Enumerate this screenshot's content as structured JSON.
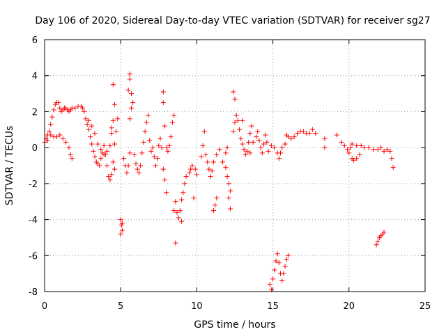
{
  "chart_data": {
    "type": "scatter",
    "title": "Day 106 of 2020, Sidereal Day-to-day VTEC variation (SDTVAR) for receiver sg27",
    "xlabel": "GPS time / hours",
    "ylabel": "SDTVAR / TECUs",
    "xlim": [
      0,
      25
    ],
    "ylim": [
      -8,
      6
    ],
    "xticks": [
      0,
      5,
      10,
      15,
      20,
      25
    ],
    "yticks": [
      -8,
      -6,
      -4,
      -2,
      0,
      2,
      4,
      6
    ],
    "grid": true,
    "marker": "plus",
    "color": "#ff0000",
    "series": [
      {
        "name": "SDTVAR",
        "points": [
          [
            0.0,
            0.3
          ],
          [
            0.1,
            0.5
          ],
          [
            0.2,
            0.7
          ],
          [
            0.3,
            0.9
          ],
          [
            0.4,
            1.3
          ],
          [
            0.5,
            1.7
          ],
          [
            0.6,
            2.1
          ],
          [
            0.7,
            2.4
          ],
          [
            0.8,
            2.5
          ],
          [
            0.9,
            2.5
          ],
          [
            1.0,
            2.2
          ],
          [
            1.1,
            2.0
          ],
          [
            1.2,
            2.1
          ],
          [
            1.3,
            2.2
          ],
          [
            1.4,
            2.2
          ],
          [
            1.5,
            2.1
          ],
          [
            1.6,
            2.0
          ],
          [
            1.7,
            2.1
          ],
          [
            1.8,
            2.2
          ],
          [
            2.0,
            2.2
          ],
          [
            2.2,
            2.3
          ],
          [
            2.4,
            2.3
          ],
          [
            2.5,
            2.2
          ],
          [
            2.6,
            2.0
          ],
          [
            2.7,
            1.6
          ],
          [
            2.8,
            1.3
          ],
          [
            2.9,
            1.0
          ],
          [
            3.0,
            0.6
          ],
          [
            3.1,
            0.2
          ],
          [
            3.2,
            -0.2
          ],
          [
            3.3,
            -0.5
          ],
          [
            3.4,
            -0.8
          ],
          [
            3.5,
            -0.9
          ],
          [
            3.6,
            -1.0
          ],
          [
            3.7,
            -0.6
          ],
          [
            3.8,
            -0.3
          ],
          [
            3.9,
            0.1
          ],
          [
            4.0,
            -0.4
          ],
          [
            4.1,
            -1.0
          ],
          [
            4.2,
            -1.6
          ],
          [
            4.3,
            -1.8
          ],
          [
            4.4,
            -1.5
          ],
          [
            4.5,
            -0.8
          ],
          [
            4.6,
            0.2
          ],
          [
            4.7,
            0.9
          ],
          [
            4.8,
            1.6
          ],
          [
            0.2,
            0.4
          ],
          [
            0.4,
            0.7
          ],
          [
            0.6,
            0.6
          ],
          [
            0.8,
            0.6
          ],
          [
            1.0,
            0.7
          ],
          [
            1.2,
            0.5
          ],
          [
            1.4,
            0.3
          ],
          [
            1.6,
            0.0
          ],
          [
            1.7,
            -0.4
          ],
          [
            1.8,
            -0.6
          ],
          [
            2.9,
            1.5
          ],
          [
            3.1,
            1.2
          ],
          [
            3.3,
            0.8
          ],
          [
            3.5,
            0.2
          ],
          [
            3.7,
            -0.1
          ],
          [
            3.9,
            -0.4
          ],
          [
            4.1,
            -0.2
          ],
          [
            4.3,
            0.1
          ],
          [
            4.4,
            1.1
          ],
          [
            4.5,
            1.5
          ],
          [
            4.6,
            2.4
          ],
          [
            4.5,
            3.5
          ],
          [
            4.4,
            0.8
          ],
          [
            4.6,
            -1.2
          ],
          [
            5.0,
            -4.0
          ],
          [
            5.05,
            -4.3
          ],
          [
            5.1,
            -4.6
          ],
          [
            5.0,
            -4.8
          ],
          [
            5.1,
            -4.2
          ],
          [
            5.2,
            -0.6
          ],
          [
            5.3,
            -1.0
          ],
          [
            5.4,
            -1.4
          ],
          [
            5.5,
            -1.0
          ],
          [
            5.6,
            -0.3
          ],
          [
            5.6,
            1.6
          ],
          [
            5.7,
            2.2
          ],
          [
            5.5,
            3.2
          ],
          [
            5.6,
            3.8
          ],
          [
            5.6,
            4.1
          ],
          [
            5.7,
            3.0
          ],
          [
            5.8,
            2.5
          ],
          [
            5.9,
            -0.4
          ],
          [
            6.0,
            -0.9
          ],
          [
            6.1,
            -1.2
          ],
          [
            6.2,
            -1.4
          ],
          [
            6.3,
            -1.0
          ],
          [
            6.4,
            -0.3
          ],
          [
            6.5,
            0.3
          ],
          [
            6.6,
            0.9
          ],
          [
            6.7,
            1.4
          ],
          [
            6.8,
            1.8
          ],
          [
            6.9,
            0.4
          ],
          [
            7.0,
            -0.2
          ],
          [
            7.1,
            0.0
          ],
          [
            7.2,
            -0.5
          ],
          [
            7.3,
            -1.0
          ],
          [
            7.4,
            -0.6
          ],
          [
            7.5,
            0.1
          ],
          [
            7.6,
            0.5
          ],
          [
            7.7,
            0.0
          ],
          [
            7.8,
            -1.2
          ],
          [
            7.9,
            -1.8
          ],
          [
            8.0,
            -2.5
          ],
          [
            7.8,
            2.5
          ],
          [
            7.8,
            3.1
          ],
          [
            7.9,
            1.2
          ],
          [
            8.0,
            0.0
          ],
          [
            8.1,
            -0.2
          ],
          [
            8.2,
            0.1
          ],
          [
            8.3,
            0.6
          ],
          [
            8.4,
            1.4
          ],
          [
            8.5,
            1.8
          ],
          [
            8.5,
            -3.5
          ],
          [
            8.6,
            -3.0
          ],
          [
            8.7,
            -3.6
          ],
          [
            8.8,
            -3.9
          ],
          [
            8.9,
            -3.5
          ],
          [
            9.0,
            -2.9
          ],
          [
            9.1,
            -2.5
          ],
          [
            9.0,
            -4.1
          ],
          [
            8.6,
            -5.3
          ],
          [
            9.2,
            -2.0
          ],
          [
            9.3,
            -1.6
          ],
          [
            9.5,
            -1.4
          ],
          [
            9.6,
            -1.2
          ],
          [
            9.7,
            -1.0
          ],
          [
            9.9,
            -1.2
          ],
          [
            10.0,
            -1.5
          ],
          [
            9.8,
            -2.8
          ],
          [
            10.3,
            -0.5
          ],
          [
            10.4,
            0.1
          ],
          [
            10.5,
            0.9
          ],
          [
            10.6,
            -0.4
          ],
          [
            10.7,
            -0.8
          ],
          [
            10.8,
            -1.2
          ],
          [
            10.9,
            -1.6
          ],
          [
            11.0,
            -1.3
          ],
          [
            11.1,
            -0.8
          ],
          [
            11.3,
            -0.4
          ],
          [
            11.5,
            -0.1
          ],
          [
            11.7,
            -0.8
          ],
          [
            11.9,
            -1.1
          ],
          [
            12.0,
            -1.6
          ],
          [
            12.1,
            -2.0
          ],
          [
            12.2,
            -2.4
          ],
          [
            11.9,
            -0.3
          ],
          [
            12.0,
            0.0
          ],
          [
            12.1,
            -2.8
          ],
          [
            12.2,
            -3.4
          ],
          [
            11.3,
            -2.8
          ],
          [
            11.2,
            -3.2
          ],
          [
            11.1,
            -3.5
          ],
          [
            12.4,
            0.9
          ],
          [
            12.5,
            1.4
          ],
          [
            12.6,
            1.8
          ],
          [
            12.7,
            1.5
          ],
          [
            12.8,
            1.0
          ],
          [
            12.9,
            0.5
          ],
          [
            13.0,
            0.2
          ],
          [
            13.1,
            -0.1
          ],
          [
            13.2,
            -0.4
          ],
          [
            13.3,
            -0.2
          ],
          [
            13.4,
            0.3
          ],
          [
            13.5,
            0.8
          ],
          [
            13.6,
            1.2
          ],
          [
            12.5,
            2.7
          ],
          [
            12.4,
            3.1
          ],
          [
            13.0,
            1.5
          ],
          [
            13.5,
            -0.3
          ],
          [
            13.7,
            0.3
          ],
          [
            13.9,
            0.6
          ],
          [
            14.0,
            0.9
          ],
          [
            14.1,
            0.4
          ],
          [
            14.2,
            0.0
          ],
          [
            14.3,
            -0.3
          ],
          [
            14.4,
            0.2
          ],
          [
            14.5,
            0.7
          ],
          [
            14.6,
            0.3
          ],
          [
            14.7,
            -0.2
          ],
          [
            14.9,
            0.1
          ],
          [
            15.1,
            0.0
          ],
          [
            15.3,
            -0.3
          ],
          [
            15.4,
            -0.6
          ],
          [
            15.5,
            -0.3
          ],
          [
            15.6,
            0.0
          ],
          [
            15.8,
            0.2
          ],
          [
            14.8,
            -7.6
          ],
          [
            14.9,
            -7.9
          ],
          [
            15.0,
            -7.3
          ],
          [
            15.1,
            -6.8
          ],
          [
            15.2,
            -6.3
          ],
          [
            15.3,
            -5.9
          ],
          [
            15.4,
            -6.4
          ],
          [
            15.5,
            -7.0
          ],
          [
            15.6,
            -7.4
          ],
          [
            15.7,
            -7.0
          ],
          [
            15.8,
            -6.6
          ],
          [
            15.9,
            -6.2
          ],
          [
            16.0,
            -6.0
          ],
          [
            15.9,
            0.7
          ],
          [
            16.0,
            0.6
          ],
          [
            16.2,
            0.5
          ],
          [
            16.4,
            0.6
          ],
          [
            16.6,
            0.8
          ],
          [
            16.8,
            0.9
          ],
          [
            17.0,
            0.9
          ],
          [
            17.2,
            0.8
          ],
          [
            17.4,
            0.8
          ],
          [
            17.6,
            1.0
          ],
          [
            17.8,
            0.8
          ],
          [
            18.4,
            0.5
          ],
          [
            18.4,
            0.0
          ],
          [
            19.2,
            0.7
          ],
          [
            19.5,
            0.3
          ],
          [
            19.7,
            0.1
          ],
          [
            19.9,
            -0.1
          ],
          [
            20.0,
            -0.3
          ],
          [
            20.1,
            0.0
          ],
          [
            20.2,
            -0.6
          ],
          [
            20.3,
            -0.7
          ],
          [
            20.5,
            -0.6
          ],
          [
            20.7,
            -0.4
          ],
          [
            20.2,
            0.2
          ],
          [
            20.5,
            0.1
          ],
          [
            20.8,
            0.1
          ],
          [
            21.0,
            0.0
          ],
          [
            21.3,
            0.0
          ],
          [
            21.6,
            -0.1
          ],
          [
            21.9,
            -0.1
          ],
          [
            22.1,
            0.0
          ],
          [
            22.3,
            -0.2
          ],
          [
            22.5,
            -0.1
          ],
          [
            22.7,
            -0.2
          ],
          [
            22.8,
            -0.6
          ],
          [
            22.9,
            -1.1
          ],
          [
            21.8,
            -5.4
          ],
          [
            21.9,
            -5.2
          ],
          [
            22.0,
            -5.0
          ],
          [
            22.1,
            -4.9
          ],
          [
            22.2,
            -4.8
          ],
          [
            22.3,
            -4.7
          ]
        ]
      }
    ]
  }
}
